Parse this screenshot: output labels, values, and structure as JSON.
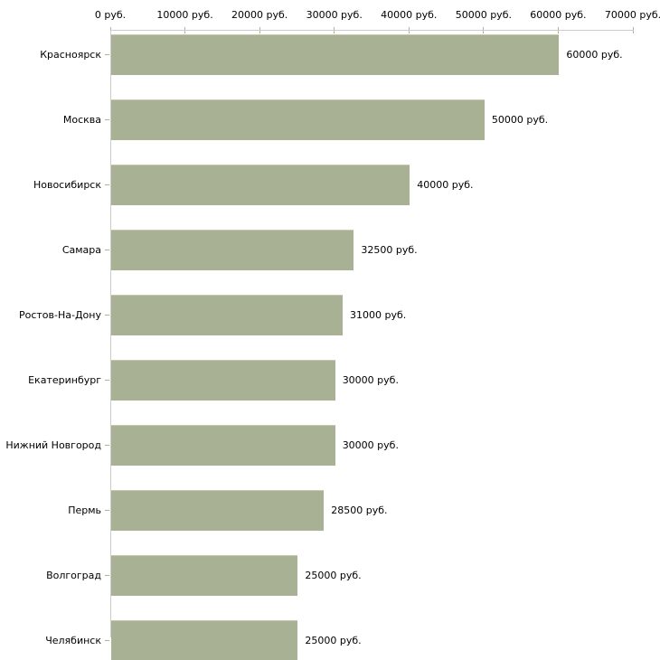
{
  "chart_data": {
    "type": "bar",
    "orientation": "horizontal",
    "title": "",
    "xlabel": "",
    "ylabel": "",
    "categories": [
      "Красноярск",
      "Москва",
      "Новосибирск",
      "Самара",
      "Ростов-На-Дону",
      "Екатеринбург",
      "Нижний Новгород",
      "Пермь",
      "Волгоград",
      "Челябинск"
    ],
    "values": [
      60000,
      50000,
      40000,
      32500,
      31000,
      30000,
      30000,
      28500,
      25000,
      25000
    ],
    "value_labels": [
      "60000 руб.",
      "50000 руб.",
      "40000 руб.",
      "32500 руб.",
      "31000 руб.",
      "30000 руб.",
      "30000 руб.",
      "28500 руб.",
      "25000 руб.",
      "25000 руб."
    ],
    "x_axis": {
      "position": "top",
      "min": 0,
      "max": 70000,
      "tick_values": [
        0,
        10000,
        20000,
        30000,
        40000,
        50000,
        60000,
        70000
      ],
      "tick_labels": [
        "0 руб.",
        "10000 руб.",
        "20000 руб.",
        "30000 руб.",
        "40000 руб.",
        "50000 руб.",
        "60000 руб.",
        "70000 руб."
      ]
    },
    "grid": false,
    "legend": null,
    "colors": {
      "bar": "#a9b194",
      "bar_top_edge": "#c5c9b0",
      "axis_line": "#cccccc",
      "tick": "#b2b487",
      "label_text": "#000000",
      "background": "#ffffff"
    }
  }
}
